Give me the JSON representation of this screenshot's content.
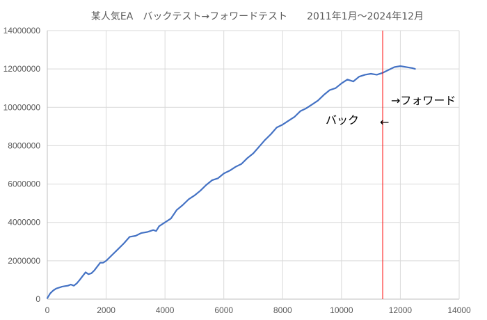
{
  "chart_data": {
    "type": "line",
    "title": "某人気EA　バックテスト→フォワードテスト　　2011年1月～2024年12月",
    "xlabel": "",
    "ylabel": "",
    "xlim": [
      0,
      14000
    ],
    "ylim": [
      0,
      14000000
    ],
    "x_ticks": [
      "0",
      "2000",
      "4000",
      "6000",
      "8000",
      "10000",
      "12000",
      "14000"
    ],
    "y_ticks": [
      "0",
      "2000000",
      "4000000",
      "6000000",
      "8000000",
      "10000000",
      "12000000",
      "14000000"
    ],
    "grid": true,
    "series": [
      {
        "color": "#4472c4",
        "x": [
          0,
          100,
          200,
          300,
          400,
          500,
          600,
          700,
          800,
          900,
          1000,
          1100,
          1200,
          1300,
          1400,
          1500,
          1600,
          1700,
          1800,
          1900,
          2000,
          2200,
          2400,
          2600,
          2800,
          3000,
          3200,
          3400,
          3600,
          3700,
          3800,
          4000,
          4200,
          4400,
          4600,
          4800,
          5000,
          5200,
          5400,
          5600,
          5800,
          6000,
          6200,
          6400,
          6600,
          6800,
          7000,
          7200,
          7400,
          7600,
          7800,
          8000,
          8200,
          8400,
          8600,
          8800,
          9000,
          9200,
          9400,
          9600,
          9800,
          10000,
          10200,
          10400,
          10600,
          10800,
          11000,
          11200,
          11400,
          11600,
          11800,
          12000,
          12200,
          12400,
          12500
        ],
        "y": [
          50000,
          300000,
          450000,
          550000,
          600000,
          650000,
          680000,
          700000,
          760000,
          700000,
          820000,
          1000000,
          1200000,
          1400000,
          1300000,
          1350000,
          1500000,
          1700000,
          1900000,
          1900000,
          2000000,
          2300000,
          2600000,
          2900000,
          3250000,
          3300000,
          3450000,
          3500000,
          3600000,
          3550000,
          3800000,
          4000000,
          4200000,
          4650000,
          4900000,
          5200000,
          5400000,
          5650000,
          5950000,
          6200000,
          6300000,
          6550000,
          6700000,
          6900000,
          7050000,
          7350000,
          7600000,
          7950000,
          8300000,
          8600000,
          8950000,
          9100000,
          9300000,
          9500000,
          9800000,
          9950000,
          10150000,
          10350000,
          10650000,
          10900000,
          11000000,
          11250000,
          11450000,
          11350000,
          11600000,
          11700000,
          11750000,
          11700000,
          11800000,
          11950000,
          12100000,
          12150000,
          12100000,
          12050000,
          12000000
        ]
      }
    ],
    "marker_line": {
      "x": 11400,
      "color": "#ff0000"
    },
    "annotations": {
      "forward": "→フォワード",
      "back": "バック",
      "back_arrow": "←"
    }
  }
}
